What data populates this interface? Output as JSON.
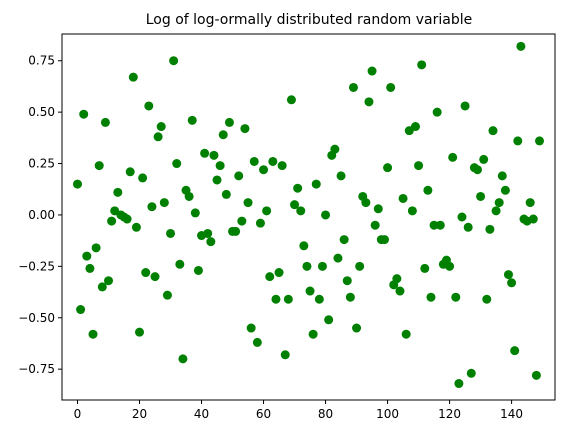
{
  "chart_data": {
    "type": "scatter",
    "title": "Log of log-ormally distributed random variable",
    "xlabel": "",
    "ylabel": "",
    "xlim": [
      -5,
      154
    ],
    "ylim": [
      -0.9,
      0.88
    ],
    "grid": false,
    "marker_color": "#008000",
    "x_ticks": [
      0,
      20,
      40,
      60,
      80,
      100,
      120,
      140
    ],
    "y_ticks": [
      -0.75,
      -0.5,
      -0.25,
      0.0,
      0.25,
      0.5,
      0.75
    ],
    "x_tick_labels": [
      "0",
      "20",
      "40",
      "60",
      "80",
      "100",
      "120",
      "140"
    ],
    "y_tick_labels": [
      "−0.75",
      "−0.50",
      "−0.25",
      "0.00",
      "0.25",
      "0.50",
      "0.75"
    ],
    "points": {
      "x": [
        0,
        1,
        2,
        3,
        4,
        5,
        6,
        7,
        8,
        9,
        10,
        11,
        12,
        13,
        14,
        15,
        16,
        17,
        18,
        19,
        20,
        21,
        22,
        23,
        24,
        25,
        26,
        27,
        28,
        29,
        30,
        31,
        32,
        33,
        34,
        35,
        36,
        37,
        38,
        39,
        40,
        41,
        42,
        43,
        44,
        45,
        46,
        47,
        48,
        49,
        50,
        51,
        52,
        53,
        54,
        55,
        56,
        57,
        58,
        59,
        60,
        61,
        62,
        63,
        64,
        65,
        66,
        67,
        68,
        69,
        70,
        71,
        72,
        73,
        74,
        75,
        76,
        77,
        78,
        79,
        80,
        81,
        82,
        83,
        84,
        85,
        86,
        87,
        88,
        89,
        90,
        91,
        92,
        93,
        94,
        95,
        96,
        97,
        98,
        99,
        100,
        101,
        102,
        103,
        104,
        105,
        106,
        107,
        108,
        109,
        110,
        111,
        112,
        113,
        114,
        115,
        116,
        117,
        118,
        119,
        120,
        121,
        122,
        123,
        124,
        125,
        126,
        127,
        128,
        129,
        130,
        131,
        132,
        133,
        134,
        135,
        136,
        137,
        138,
        139,
        140,
        141,
        142,
        143,
        144,
        145,
        146,
        147,
        148,
        149
      ],
      "y": [
        0.15,
        -0.46,
        0.49,
        -0.2,
        -0.26,
        -0.58,
        -0.16,
        0.24,
        -0.35,
        0.45,
        -0.32,
        -0.03,
        0.02,
        0.11,
        0.0,
        -0.01,
        -0.02,
        0.21,
        0.67,
        -0.06,
        -0.57,
        0.18,
        -0.28,
        0.53,
        0.04,
        -0.3,
        0.38,
        0.43,
        0.06,
        -0.39,
        -0.09,
        0.75,
        0.25,
        -0.24,
        -0.7,
        0.12,
        0.09,
        0.46,
        0.01,
        -0.27,
        -0.1,
        0.3,
        -0.09,
        -0.13,
        0.29,
        0.17,
        0.24,
        0.39,
        0.1,
        0.45,
        -0.08,
        -0.08,
        0.19,
        -0.03,
        0.42,
        0.06,
        -0.55,
        0.26,
        -0.62,
        -0.04,
        0.22,
        0.02,
        -0.3,
        0.26,
        -0.41,
        -0.28,
        0.24,
        -0.68,
        -0.41,
        0.56,
        0.05,
        0.13,
        0.02,
        -0.15,
        -0.25,
        -0.37,
        -0.58,
        0.15,
        -0.41,
        -0.25,
        0.0,
        -0.51,
        0.29,
        0.32,
        -0.21,
        0.19,
        -0.12,
        -0.32,
        -0.4,
        0.62,
        -0.55,
        -0.25,
        0.09,
        0.06,
        0.55,
        0.7,
        -0.05,
        0.03,
        -0.12,
        -0.12,
        0.23,
        0.62,
        -0.34,
        -0.31,
        -0.37,
        0.08,
        -0.58,
        0.41,
        0.02,
        0.43,
        0.24,
        0.73,
        -0.26,
        0.12,
        -0.4,
        -0.05,
        0.5,
        -0.05,
        -0.24,
        -0.22,
        -0.25,
        0.28,
        -0.4,
        -0.82,
        -0.01,
        0.53,
        -0.06,
        -0.77,
        0.23,
        0.22,
        0.09,
        0.27,
        -0.41,
        -0.07,
        0.41,
        0.02,
        0.06,
        0.19,
        0.12,
        -0.29,
        -0.33,
        -0.66,
        0.36,
        0.82,
        -0.02,
        -0.03,
        0.06,
        -0.02,
        -0.78,
        0.36
      ]
    }
  }
}
